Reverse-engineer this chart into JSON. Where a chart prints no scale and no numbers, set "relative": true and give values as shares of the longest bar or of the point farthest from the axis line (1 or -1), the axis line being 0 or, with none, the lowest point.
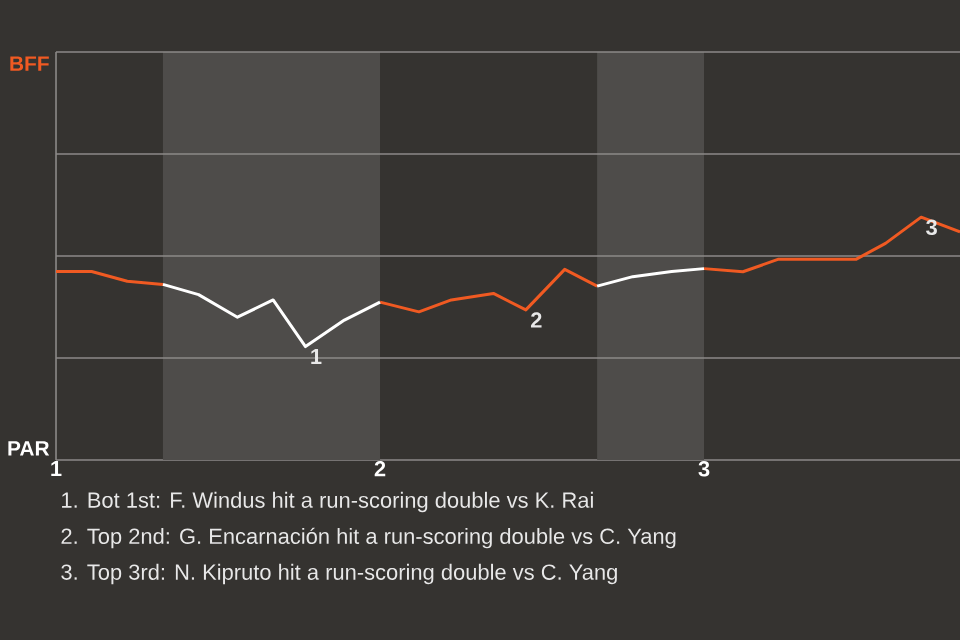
{
  "chart_data": {
    "type": "line",
    "relative": true,
    "x": [
      1,
      1.11,
      1.22,
      1.33,
      1.44,
      1.56,
      1.67,
      1.77,
      1.89,
      2.0,
      2.12,
      2.22,
      2.35,
      2.45,
      2.57,
      2.67,
      2.78,
      2.9,
      3.0,
      3.12,
      3.23,
      3.47,
      3.56,
      3.67,
      3.79
    ],
    "series": [
      {
        "color": "#f05a22",
        "values": [
          0.776,
          0.776,
          0.736,
          0.723,
          null,
          null,
          null,
          null,
          null,
          0.65,
          0.61,
          0.659,
          0.686,
          0.618,
          0.785,
          0.716,
          null,
          null,
          0.788,
          0.775,
          0.827,
          0.827,
          0.892,
          1,
          0.939
        ]
      },
      {
        "color": "#ffffff",
        "values": [
          null,
          null,
          null,
          0.723,
          0.681,
          0.588,
          0.659,
          0.467,
          0.576,
          0.65,
          null,
          null,
          null,
          null,
          null,
          0.716,
          0.755,
          0.776,
          0.788,
          null,
          null,
          null,
          null,
          null,
          null
        ]
      }
    ],
    "xlim": [
      1,
      3.79
    ],
    "xticks": [
      1,
      2,
      3
    ],
    "ref_lines": [
      {
        "axis": "y",
        "value": 0.42,
        "color": "#8c8a88"
      },
      {
        "axis": "y",
        "value": 0.84,
        "color": "#8c8a88"
      },
      {
        "axis": "y",
        "value": 1.26,
        "color": "#8c8a88"
      },
      {
        "axis": "y",
        "value": 1.68,
        "color": "#8c8a88"
      }
    ],
    "bands": [
      {
        "axis": "x",
        "from": 1.33,
        "to": 2,
        "color": "#4e4c4a"
      },
      {
        "axis": "x",
        "from": 2.67,
        "to": 3,
        "color": "#4e4c4a"
      }
    ],
    "annotations": [
      {
        "text": "1",
        "x": 1.77,
        "y": 0.467
      },
      {
        "text": "2",
        "x": 2.45,
        "y": 0.618
      },
      {
        "text": "3",
        "x": 3.67,
        "y": 1
      },
      "BFF",
      "PAR",
      "1. Bot 1st: F. Windus hit a run-scoring double vs K. Rai",
      "2. Top 2nd: G. Encarnación hit a run-scoring double vs C. Yang",
      "3. Top 3rd: N. Kipruto hit a run-scoring double vs C. Yang"
    ]
  }
}
